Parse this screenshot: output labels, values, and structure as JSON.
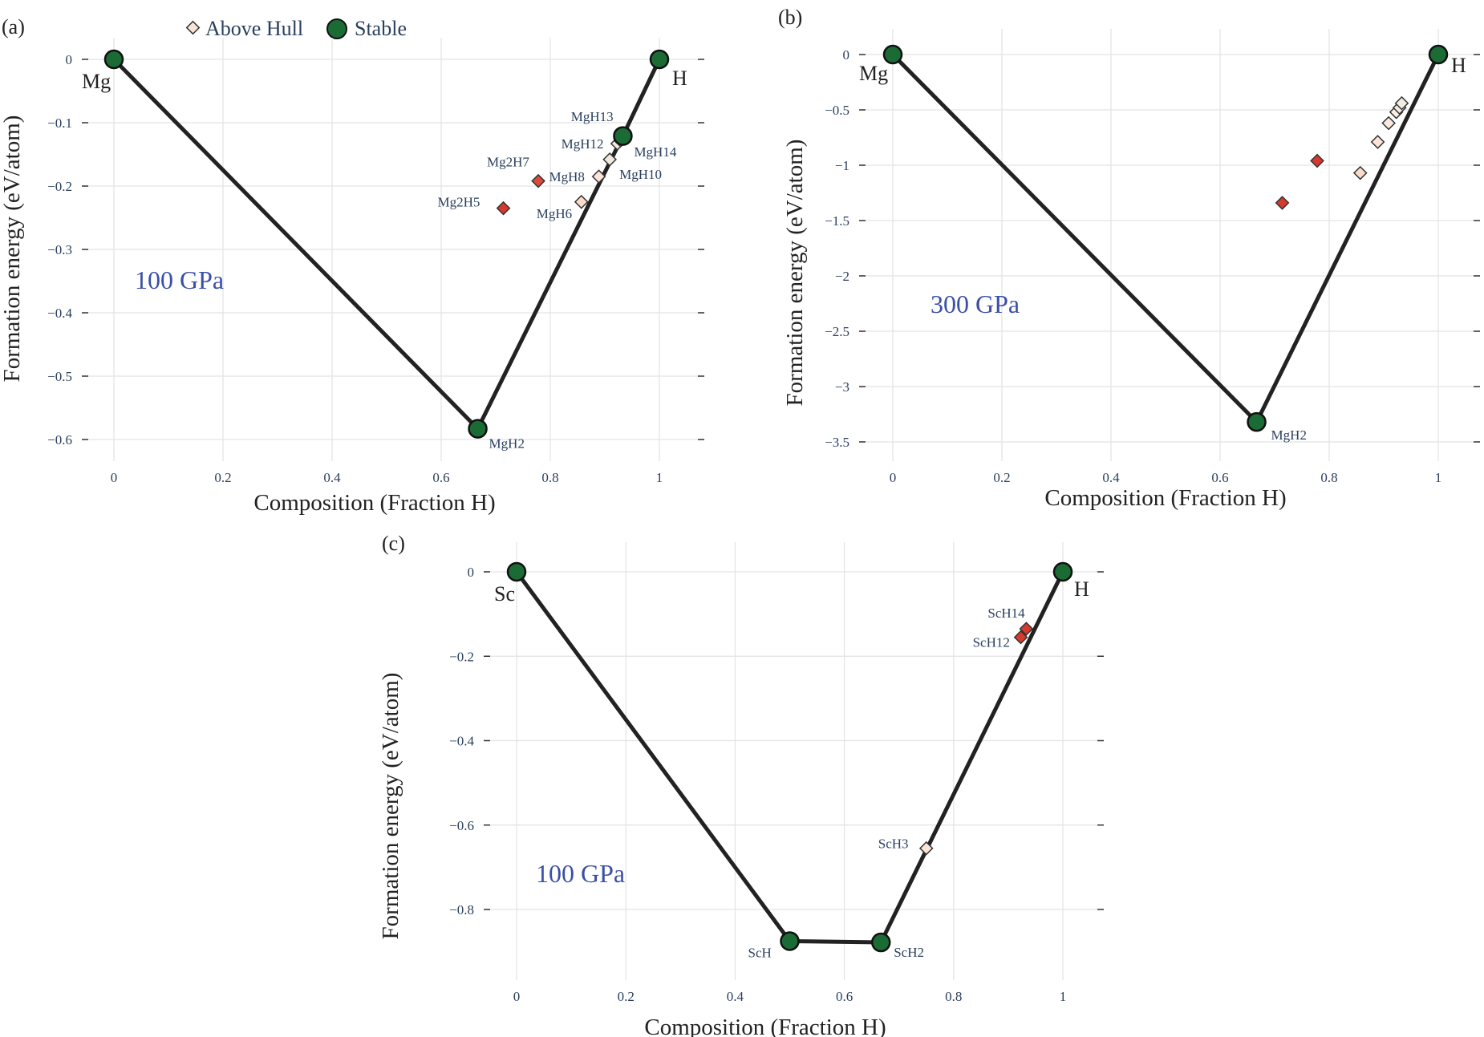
{
  "legend": {
    "above_hull": "Above Hull",
    "stable": "Stable"
  },
  "colors": {
    "stable": "#1b6b35",
    "hull_line": "#222222",
    "unstable_high": "#d63a2f",
    "unstable_low": "#fbe3d6",
    "pressure_text": "#3a4fa8",
    "label_text": "#2a3f5f"
  },
  "chart_data": [
    {
      "panel_label": "(a)",
      "type": "scatter",
      "pressure": "100 GPa",
      "xlabel": "Composition (Fraction H)",
      "ylabel": "Formation energy (eV/atom)",
      "xlim": [
        0,
        1
      ],
      "ylim": [
        -0.6,
        0
      ],
      "xticks": [
        "0",
        "0.2",
        "0.4",
        "0.6",
        "0.8",
        "1"
      ],
      "xtick_values": [
        0,
        0.2,
        0.4,
        0.6,
        0.8,
        1
      ],
      "yticks": [
        "0",
        "−0.1",
        "−0.2",
        "−0.3",
        "−0.4",
        "−0.5",
        "−0.6"
      ],
      "ytick_values": [
        0,
        -0.1,
        -0.2,
        -0.3,
        -0.4,
        -0.5,
        -0.6
      ],
      "grid": true,
      "stable": [
        {
          "label": "Mg",
          "x": 0,
          "y": 0,
          "end": true
        },
        {
          "label": "MgH2",
          "x": 0.667,
          "y": -0.583
        },
        {
          "label": "",
          "x": 0.933,
          "y": -0.121
        },
        {
          "label": "H",
          "x": 1,
          "y": 0,
          "end": true
        }
      ],
      "above_hull": [
        {
          "label": "Mg2H5",
          "x": 0.714,
          "y": -0.235,
          "color": "#d63a2f"
        },
        {
          "label": "Mg2H7",
          "x": 0.778,
          "y": -0.192,
          "color": "#d94a3a"
        },
        {
          "label": "MgH6",
          "x": 0.857,
          "y": -0.225,
          "color": "#fbdccc"
        },
        {
          "label": "MgH8",
          "x": 0.889,
          "y": -0.185,
          "color": "#fce4d8"
        },
        {
          "label": "MgH10",
          "x": 0.909,
          "y": -0.158,
          "color": "#f0e8dc"
        },
        {
          "label": "MgH12",
          "x": 0.923,
          "y": -0.133,
          "color": "#f3ece2"
        },
        {
          "label": "MgH13",
          "x": 0.929,
          "y": -0.128,
          "color": "#f3ece2"
        },
        {
          "label": "MgH14",
          "x": 0.933,
          "y": -0.125,
          "color": "#e6efdc"
        }
      ]
    },
    {
      "panel_label": "(b)",
      "type": "scatter",
      "pressure": "300 GPa",
      "xlabel": "Composition (Fraction H)",
      "ylabel": "Formation energy (eV/atom)",
      "xlim": [
        0,
        1
      ],
      "ylim": [
        -3.5,
        0
      ],
      "xticks": [
        "0",
        "0.2",
        "0.4",
        "0.6",
        "0.8",
        "1"
      ],
      "xtick_values": [
        0,
        0.2,
        0.4,
        0.6,
        0.8,
        1
      ],
      "yticks": [
        "0",
        "−0.5",
        "−1",
        "−1.5",
        "−2",
        "−2.5",
        "−3",
        "−3.5"
      ],
      "ytick_values": [
        0,
        -0.5,
        -1,
        -1.5,
        -2,
        -2.5,
        -3,
        -3.5
      ],
      "grid": true,
      "stable": [
        {
          "label": "Mg",
          "x": 0,
          "y": 0,
          "end": true
        },
        {
          "label": "MgH2",
          "x": 0.667,
          "y": -3.32
        },
        {
          "label": "H",
          "x": 1,
          "y": 0,
          "end": true
        }
      ],
      "above_hull": [
        {
          "label": "",
          "x": 0.714,
          "y": -1.34,
          "color": "#d63a2f"
        },
        {
          "label": "",
          "x": 0.778,
          "y": -0.96,
          "color": "#d63a2f"
        },
        {
          "label": "",
          "x": 0.857,
          "y": -1.07,
          "color": "#fbdccc"
        },
        {
          "label": "",
          "x": 0.889,
          "y": -0.79,
          "color": "#fce4d8"
        },
        {
          "label": "",
          "x": 0.909,
          "y": -0.62,
          "color": "#fce8dc"
        },
        {
          "label": "",
          "x": 0.923,
          "y": -0.52,
          "color": "#fcefe6"
        },
        {
          "label": "",
          "x": 0.929,
          "y": -0.48,
          "color": "#f3ece2"
        },
        {
          "label": "",
          "x": 0.933,
          "y": -0.44,
          "color": "#f3ece2"
        }
      ]
    },
    {
      "panel_label": "(c)",
      "type": "scatter",
      "pressure": "100 GPa",
      "xlabel": "Composition (Fraction H)",
      "ylabel": "Formation energy (eV/atom)",
      "xlim": [
        0,
        1
      ],
      "ylim": [
        -0.9,
        0
      ],
      "xticks": [
        "0",
        "0.2",
        "0.4",
        "0.6",
        "0.8",
        "1"
      ],
      "xtick_values": [
        0,
        0.2,
        0.4,
        0.6,
        0.8,
        1
      ],
      "yticks": [
        "0",
        "−0.2",
        "−0.4",
        "−0.6",
        "−0.8"
      ],
      "ytick_values": [
        0,
        -0.2,
        -0.4,
        -0.6,
        -0.8
      ],
      "grid": true,
      "stable": [
        {
          "label": "Sc",
          "x": 0,
          "y": 0,
          "end": true
        },
        {
          "label": "ScH",
          "x": 0.5,
          "y": -0.875
        },
        {
          "label": "ScH2",
          "x": 0.667,
          "y": -0.878
        },
        {
          "label": "H",
          "x": 1,
          "y": 0,
          "end": true
        }
      ],
      "above_hull": [
        {
          "label": "ScH3",
          "x": 0.75,
          "y": -0.655,
          "color": "#fce4d8"
        },
        {
          "label": "ScH12",
          "x": 0.923,
          "y": -0.155,
          "color": "#d63a2f"
        },
        {
          "label": "ScH14",
          "x": 0.933,
          "y": -0.135,
          "color": "#d63a2f"
        }
      ]
    }
  ]
}
